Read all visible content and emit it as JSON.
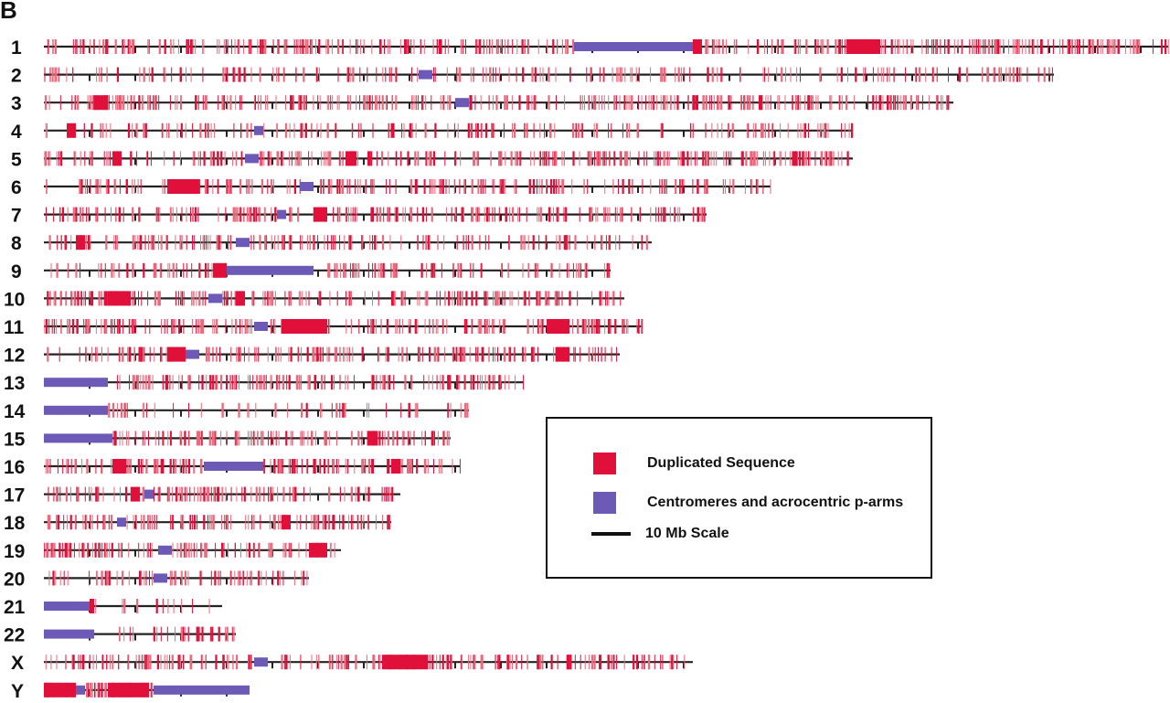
{
  "panel_letter": "B",
  "colors": {
    "duplicated": "#e0103a",
    "duplicated_light": "#ec6a7e",
    "centromere": "#6d5ab7",
    "line": "#222222"
  },
  "chromosomes": [
    {
      "label": "1",
      "length_mb": 246,
      "cen": [
        116,
        142
      ],
      "seed": 11,
      "density": 1.0,
      "clusters": [
        [
          142,
          144
        ],
        [
          176,
          183
        ]
      ]
    },
    {
      "label": "2",
      "length_mb": 221,
      "cen": [
        82,
        85
      ],
      "seed": 22,
      "density": 0.55,
      "clusters": []
    },
    {
      "label": "3",
      "length_mb": 199,
      "cen": [
        90,
        93
      ],
      "seed": 33,
      "density": 1.0,
      "clusters": [
        [
          11,
          14
        ]
      ]
    },
    {
      "label": "4",
      "length_mb": 177,
      "cen": [
        46,
        48
      ],
      "seed": 44,
      "density": 0.6,
      "clusters": [
        [
          5,
          7
        ]
      ]
    },
    {
      "label": "5",
      "length_mb": 177,
      "cen": [
        44,
        47
      ],
      "seed": 55,
      "density": 1.0,
      "clusters": [
        [
          15,
          17
        ],
        [
          66,
          68
        ]
      ]
    },
    {
      "label": "6",
      "length_mb": 159,
      "cen": [
        56,
        59
      ],
      "seed": 66,
      "density": 0.8,
      "clusters": [
        [
          27,
          34
        ]
      ]
    },
    {
      "label": "7",
      "length_mb": 145,
      "cen": [
        51,
        53
      ],
      "seed": 77,
      "density": 0.85,
      "clusters": [
        [
          59,
          62
        ]
      ]
    },
    {
      "label": "8",
      "length_mb": 133,
      "cen": [
        42,
        45
      ],
      "seed": 88,
      "density": 0.75,
      "clusters": [
        [
          7,
          9
        ]
      ]
    },
    {
      "label": "9",
      "length_mb": 124,
      "cen": [
        40,
        59
      ],
      "seed": 99,
      "density": 0.7,
      "clusters": [
        [
          37,
          40
        ]
      ]
    },
    {
      "label": "10",
      "length_mb": 127,
      "cen": [
        36,
        39
      ],
      "seed": 101,
      "density": 0.95,
      "clusters": [
        [
          14,
          19
        ],
        [
          42,
          44
        ]
      ]
    },
    {
      "label": "11",
      "length_mb": 131,
      "cen": [
        46,
        49
      ],
      "seed": 111,
      "density": 1.0,
      "clusters": [
        [
          52,
          62
        ],
        [
          110,
          115
        ]
      ]
    },
    {
      "label": "12",
      "length_mb": 126,
      "cen": [
        31,
        34
      ],
      "seed": 121,
      "density": 0.95,
      "clusters": [
        [
          112,
          115
        ],
        [
          27,
          31
        ]
      ]
    },
    {
      "label": "13",
      "length_mb": 105,
      "cen": [
        0,
        14
      ],
      "seed": 131,
      "density": 0.9,
      "clusters": []
    },
    {
      "label": "14",
      "length_mb": 93,
      "cen": [
        0,
        14
      ],
      "seed": 141,
      "density": 0.35,
      "clusters": []
    },
    {
      "label": "15",
      "length_mb": 89,
      "cen": [
        0,
        15
      ],
      "seed": 151,
      "density": 1.0,
      "clusters": [
        [
          71,
          73
        ]
      ]
    },
    {
      "label": "16",
      "length_mb": 91,
      "cen": [
        35,
        48
      ],
      "seed": 161,
      "density": 1.0,
      "clusters": [
        [
          15,
          18
        ],
        [
          76,
          78
        ]
      ]
    },
    {
      "label": "17",
      "length_mb": 78,
      "cen": [
        22,
        24
      ],
      "seed": 171,
      "density": 0.85,
      "clusters": [
        [
          19,
          21
        ]
      ]
    },
    {
      "label": "18",
      "length_mb": 76,
      "cen": [
        16,
        18
      ],
      "seed": 181,
      "density": 1.0,
      "clusters": [
        [
          52,
          54
        ]
      ]
    },
    {
      "label": "19",
      "length_mb": 65,
      "cen": [
        25,
        28
      ],
      "seed": 191,
      "density": 1.0,
      "clusters": [
        [
          58,
          62
        ]
      ]
    },
    {
      "label": "20",
      "length_mb": 58,
      "cen": [
        24,
        27
      ],
      "seed": 201,
      "density": 0.75,
      "clusters": []
    },
    {
      "label": "21",
      "length_mb": 39,
      "cen": [
        0,
        10
      ],
      "seed": 211,
      "density": 0.25,
      "clusters": [
        [
          10,
          11
        ]
      ]
    },
    {
      "label": "22",
      "length_mb": 42,
      "cen": [
        0,
        11
      ],
      "seed": 221,
      "density": 0.55,
      "clusters": []
    },
    {
      "label": "X",
      "length_mb": 142,
      "cen": [
        46,
        49
      ],
      "seed": 231,
      "density": 0.9,
      "clusters": [
        [
          74,
          84
        ]
      ]
    },
    {
      "label": "Y",
      "length_mb": 45,
      "cen": [
        7,
        9
      ],
      "cen2": [
        24,
        45
      ],
      "seed": 241,
      "density": 1.0,
      "clusters": [
        [
          0,
          7
        ],
        [
          14,
          23
        ]
      ]
    }
  ],
  "legend": {
    "duplicated_label": "Duplicated Sequence",
    "centromere_label": "Centromeres and acrocentric p-arms",
    "scale_label": "10 Mb Scale"
  }
}
